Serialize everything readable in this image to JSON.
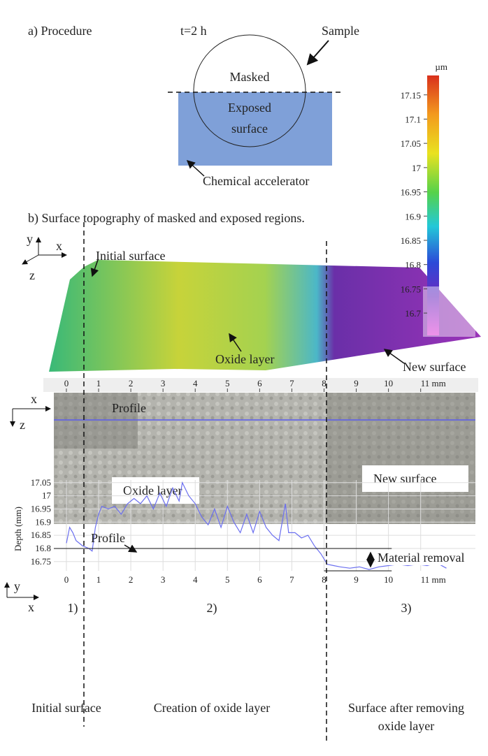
{
  "panel_a": {
    "label": "a) Procedure",
    "time": "t=2 h",
    "sample": "Sample",
    "masked": "Masked",
    "exposed": "Exposed",
    "exposed_2": "surface",
    "accelerator": "Chemical accelerator"
  },
  "panel_b": {
    "label": "b) Surface topography of masked and exposed regions.",
    "colorbar": {
      "unit": "µm",
      "clim": [
        16.654,
        17.19
      ],
      "ticks": [
        17.15,
        17.1,
        17.05,
        17,
        16.95,
        16.9,
        16.85,
        16.8,
        16.75,
        16.7
      ]
    },
    "surface_labels": {
      "initial": "Initial surface",
      "oxide": "Oxide layer",
      "new": "New surface"
    },
    "axes_3d": {
      "y": "y",
      "x": "x",
      "z": "z"
    },
    "ruler": {
      "lim": [
        -0.39,
        12.7
      ],
      "ticks": [
        0,
        1,
        2,
        3,
        4,
        5,
        6,
        7,
        8,
        9,
        10,
        {
          "value": 11,
          "label": "11 mm"
        }
      ]
    },
    "photo_labels": {
      "x": "x",
      "z": "z",
      "profile": "Profile",
      "oxide": "Oxide layer",
      "new": "New surface"
    }
  },
  "chart_data": {
    "type": "line",
    "y_label": "Depth (mm)",
    "axis_glyphs": {
      "y": "y",
      "x": "x"
    },
    "x": [
      0,
      0.1,
      0.2,
      0.3,
      0.4,
      0.5,
      0.7,
      0.8,
      0.9,
      1.0,
      1.1,
      1.3,
      1.5,
      1.7,
      1.9,
      2.1,
      2.3,
      2.5,
      2.7,
      2.9,
      3.1,
      3.3,
      3.5,
      3.6,
      3.8,
      4.0,
      4.2,
      4.4,
      4.6,
      4.8,
      5.0,
      5.2,
      5.4,
      5.6,
      5.8,
      6.0,
      6.2,
      6.4,
      6.6,
      6.8,
      6.9,
      7.1,
      7.3,
      7.5,
      7.7,
      7.9,
      8.1,
      8.3,
      8.5,
      8.8,
      9.1,
      9.4,
      9.7,
      10.0,
      10.3,
      10.6,
      10.9,
      11.2,
      11.5,
      11.8
    ],
    "series": [
      {
        "name": "Profile",
        "color": "#6b6ff0",
        "values": [
          16.82,
          16.88,
          16.86,
          16.83,
          16.82,
          16.81,
          16.8,
          16.79,
          16.88,
          16.93,
          16.96,
          16.95,
          16.96,
          16.93,
          16.97,
          16.99,
          16.97,
          17.0,
          16.95,
          17.01,
          16.96,
          17.03,
          16.98,
          17.05,
          17.0,
          16.97,
          16.92,
          16.89,
          16.95,
          16.88,
          16.96,
          16.9,
          16.86,
          16.93,
          16.86,
          16.94,
          16.88,
          16.85,
          16.83,
          16.97,
          16.86,
          16.86,
          16.84,
          16.85,
          16.81,
          16.78,
          16.74,
          16.735,
          16.73,
          16.725,
          16.73,
          16.72,
          16.73,
          16.735,
          16.74,
          16.735,
          16.74,
          16.735,
          16.745,
          16.725
        ]
      }
    ],
    "xlim": [
      -0.39,
      12.7
    ],
    "ylim": [
      16.715,
      17.06
    ],
    "xticks": [
      0,
      1,
      2,
      3,
      4,
      5,
      6,
      7,
      8,
      9,
      10,
      {
        "value": 11,
        "label": "11 mm"
      }
    ],
    "yticks": [
      16.75,
      16.8,
      16.85,
      16.9,
      16.95,
      17,
      17.05
    ],
    "grid": true,
    "reference_lines": [
      16.8
    ],
    "annotation": "Material removal"
  },
  "stages": [
    {
      "number": "1)",
      "label": "Initial surface"
    },
    {
      "number": "2)",
      "label": "Creation of oxide layer"
    },
    {
      "number": "3)",
      "label": "Surface after removing",
      "label_2": "oxide layer"
    }
  ]
}
